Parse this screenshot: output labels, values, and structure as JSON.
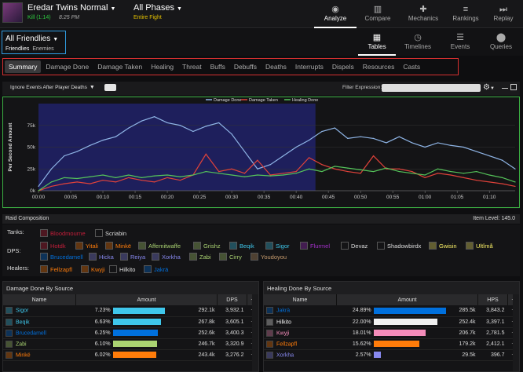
{
  "header": {
    "encounter_title": "Eredar Twins Normal",
    "kill": "Kill (1:14)",
    "time": "8:25 PM",
    "phase_title": "All Phases",
    "phase_sub": "Entire Fight",
    "nav": [
      {
        "label": "Analyze",
        "icon": "eye-icon",
        "glyph": "◉"
      },
      {
        "label": "Compare",
        "icon": "compare-icon",
        "glyph": "▥"
      },
      {
        "label": "Mechanics",
        "icon": "puzzle-icon",
        "glyph": "✚"
      },
      {
        "label": "Rankings",
        "icon": "rankings-icon",
        "glyph": "≡"
      },
      {
        "label": "Replay",
        "icon": "replay-icon",
        "glyph": "⏭"
      }
    ]
  },
  "friendlies": {
    "title": "All Friendlies",
    "tab_friendlies": "Friendlies",
    "tab_enemies": "Enemies"
  },
  "views": [
    {
      "label": "Tables",
      "icon": "grid-icon",
      "glyph": "▦"
    },
    {
      "label": "Timelines",
      "icon": "clock-icon",
      "glyph": "◷"
    },
    {
      "label": "Events",
      "icon": "list-icon",
      "glyph": "☰"
    },
    {
      "label": "Queries",
      "icon": "map-pin-icon",
      "glyph": "⬤"
    }
  ],
  "tabs": [
    "Summary",
    "Damage Done",
    "Damage Taken",
    "Healing",
    "Threat",
    "Buffs",
    "Debuffs",
    "Deaths",
    "Interrupts",
    "Dispels",
    "Resources",
    "Casts"
  ],
  "controls": {
    "ignore_label": "Ignore Events After Player Deaths",
    "filter_label": "Filter Expression:",
    "filter_value": ""
  },
  "chart_data": {
    "type": "line",
    "ylabel": "Per Second Amount",
    "yticks": [
      "0k",
      "25k",
      "50k",
      "75k"
    ],
    "ylim": [
      0,
      100
    ],
    "xticks": [
      "00:00",
      "00:05",
      "00:10",
      "00:15",
      "00:20",
      "00:25",
      "00:30",
      "00:35",
      "00:40",
      "00:45",
      "00:50",
      "00:55",
      "01:00",
      "01:05",
      "01:10"
    ],
    "x": [
      0,
      2,
      4,
      6,
      8,
      10,
      12,
      14,
      16,
      18,
      20,
      22,
      24,
      26,
      28,
      30,
      32,
      34,
      36,
      38,
      40,
      42,
      44,
      46,
      48,
      50,
      52,
      54,
      56,
      58,
      60,
      62,
      64,
      66,
      68,
      70,
      72,
      74
    ],
    "highlight_range": [
      0,
      43
    ],
    "legend": "top-center",
    "series": [
      {
        "name": "Damage Done",
        "color": "#8fb5e6",
        "values": [
          5,
          25,
          40,
          45,
          52,
          58,
          62,
          72,
          80,
          85,
          78,
          75,
          68,
          74,
          78,
          65,
          45,
          25,
          30,
          40,
          50,
          58,
          68,
          72,
          60,
          62,
          60,
          55,
          62,
          55,
          50,
          55,
          52,
          50,
          45,
          40,
          35,
          25
        ]
      },
      {
        "name": "Damage Taken",
        "color": "#e0423a",
        "values": [
          0,
          5,
          8,
          10,
          8,
          12,
          10,
          15,
          12,
          10,
          15,
          12,
          18,
          42,
          22,
          25,
          20,
          35,
          18,
          20,
          22,
          38,
          30,
          25,
          22,
          20,
          40,
          25,
          25,
          22,
          15,
          20,
          18,
          15,
          12,
          10,
          8,
          5
        ]
      },
      {
        "name": "Healing Done",
        "color": "#55c45a",
        "values": [
          0,
          10,
          15,
          14,
          16,
          18,
          15,
          18,
          15,
          17,
          18,
          16,
          18,
          22,
          20,
          18,
          16,
          18,
          17,
          18,
          20,
          25,
          22,
          28,
          26,
          24,
          22,
          26,
          22,
          20,
          18,
          25,
          22,
          20,
          22,
          18,
          15,
          10
        ]
      }
    ]
  },
  "roster": {
    "title": "Raid Composition",
    "item_level": "Item Level: 145.0",
    "tanks_label": "Tanks:",
    "dps_label": "DPS:",
    "healers_label": "Healers:",
    "tanks": [
      {
        "name": "Bloodmourne",
        "color": "#c41e3a"
      },
      {
        "name": "Scriabin",
        "color": "#ddd"
      }
    ],
    "dps_row1": [
      {
        "name": "Hotdk",
        "color": "#c41e3a"
      },
      {
        "name": "Yitali",
        "color": "#ff7c0a"
      },
      {
        "name": "Minkë",
        "color": "#ff7c0a"
      },
      {
        "name": "Affemitwaffe",
        "color": "#aad372"
      },
      {
        "name": "Grishz",
        "color": "#aad372"
      },
      {
        "name": "Beqik",
        "color": "#3fc7eb"
      },
      {
        "name": "Sigor",
        "color": "#3fc7eb"
      },
      {
        "name": "Flurmel",
        "color": "#a330c9"
      },
      {
        "name": "Devaz",
        "color": "#ddd"
      },
      {
        "name": "Shadowbirdx",
        "color": "#ddd"
      },
      {
        "name": "Gwisin",
        "color": "#fff468"
      },
      {
        "name": "Ultîmå",
        "color": "#fff468"
      }
    ],
    "dps_row2": [
      {
        "name": "Brucedamell",
        "color": "#0070dd"
      },
      {
        "name": "Hicka",
        "color": "#8788ee"
      },
      {
        "name": "Reiya",
        "color": "#8788ee"
      },
      {
        "name": "Xorkha",
        "color": "#8788ee"
      },
      {
        "name": "Zabi",
        "color": "#aad372"
      },
      {
        "name": "Cirry",
        "color": "#aad372"
      },
      {
        "name": "Youdoyou",
        "color": "#c69b6d"
      }
    ],
    "healers": [
      {
        "name": "Fellzapfl",
        "color": "#ff7c0a"
      },
      {
        "name": "Kwyji",
        "color": "#ff7c0a"
      },
      {
        "name": "Hilkito",
        "color": "#ddd"
      },
      {
        "name": "Jakrä",
        "color": "#0070dd"
      }
    ]
  },
  "damage_table": {
    "title": "Damage Done By Source",
    "columns": [
      "Name",
      "Amount",
      "DPS",
      "+"
    ],
    "rows": [
      {
        "name": "Sigor",
        "color": "#3fc7eb",
        "pct": "7.23%",
        "frac": 0.72,
        "amount": "292.1k",
        "dps": "3,932.1"
      },
      {
        "name": "Beqik",
        "color": "#3fc7eb",
        "pct": "6.63%",
        "frac": 0.66,
        "amount": "267.8k",
        "dps": "3,605.1"
      },
      {
        "name": "Brucedamell",
        "color": "#0070dd",
        "pct": "6.25%",
        "frac": 0.62,
        "amount": "252.6k",
        "dps": "3,400.3"
      },
      {
        "name": "Zabi",
        "color": "#aad372",
        "pct": "6.10%",
        "frac": 0.61,
        "amount": "246.7k",
        "dps": "3,320.9"
      },
      {
        "name": "Minkë",
        "color": "#ff7c0a",
        "pct": "6.02%",
        "frac": 0.6,
        "amount": "243.4k",
        "dps": "3,276.2"
      }
    ]
  },
  "healing_table": {
    "title": "Healing Done By Source",
    "columns": [
      "Name",
      "Amount",
      "HPS",
      "+"
    ],
    "rows": [
      {
        "name": "Jakrä",
        "color": "#0070dd",
        "pct": "24.89%",
        "frac": 1.0,
        "amount": "285.5k",
        "dps": "3,843.2"
      },
      {
        "name": "Hilkito",
        "color": "#f0f0f0",
        "pct": "22.00%",
        "frac": 0.88,
        "amount": "252.4k",
        "dps": "3,397.1"
      },
      {
        "name": "Kwyji",
        "color": "#f48cba",
        "pct": "18.01%",
        "frac": 0.72,
        "amount": "206.7k",
        "dps": "2,781.5"
      },
      {
        "name": "Fellzapfl",
        "color": "#ff7c0a",
        "pct": "15.62%",
        "frac": 0.63,
        "amount": "179.2k",
        "dps": "2,412.1"
      },
      {
        "name": "Xorkha",
        "color": "#8788ee",
        "pct": "2.57%",
        "frac": 0.1,
        "amount": "29.5k",
        "dps": "396.7"
      }
    ]
  }
}
